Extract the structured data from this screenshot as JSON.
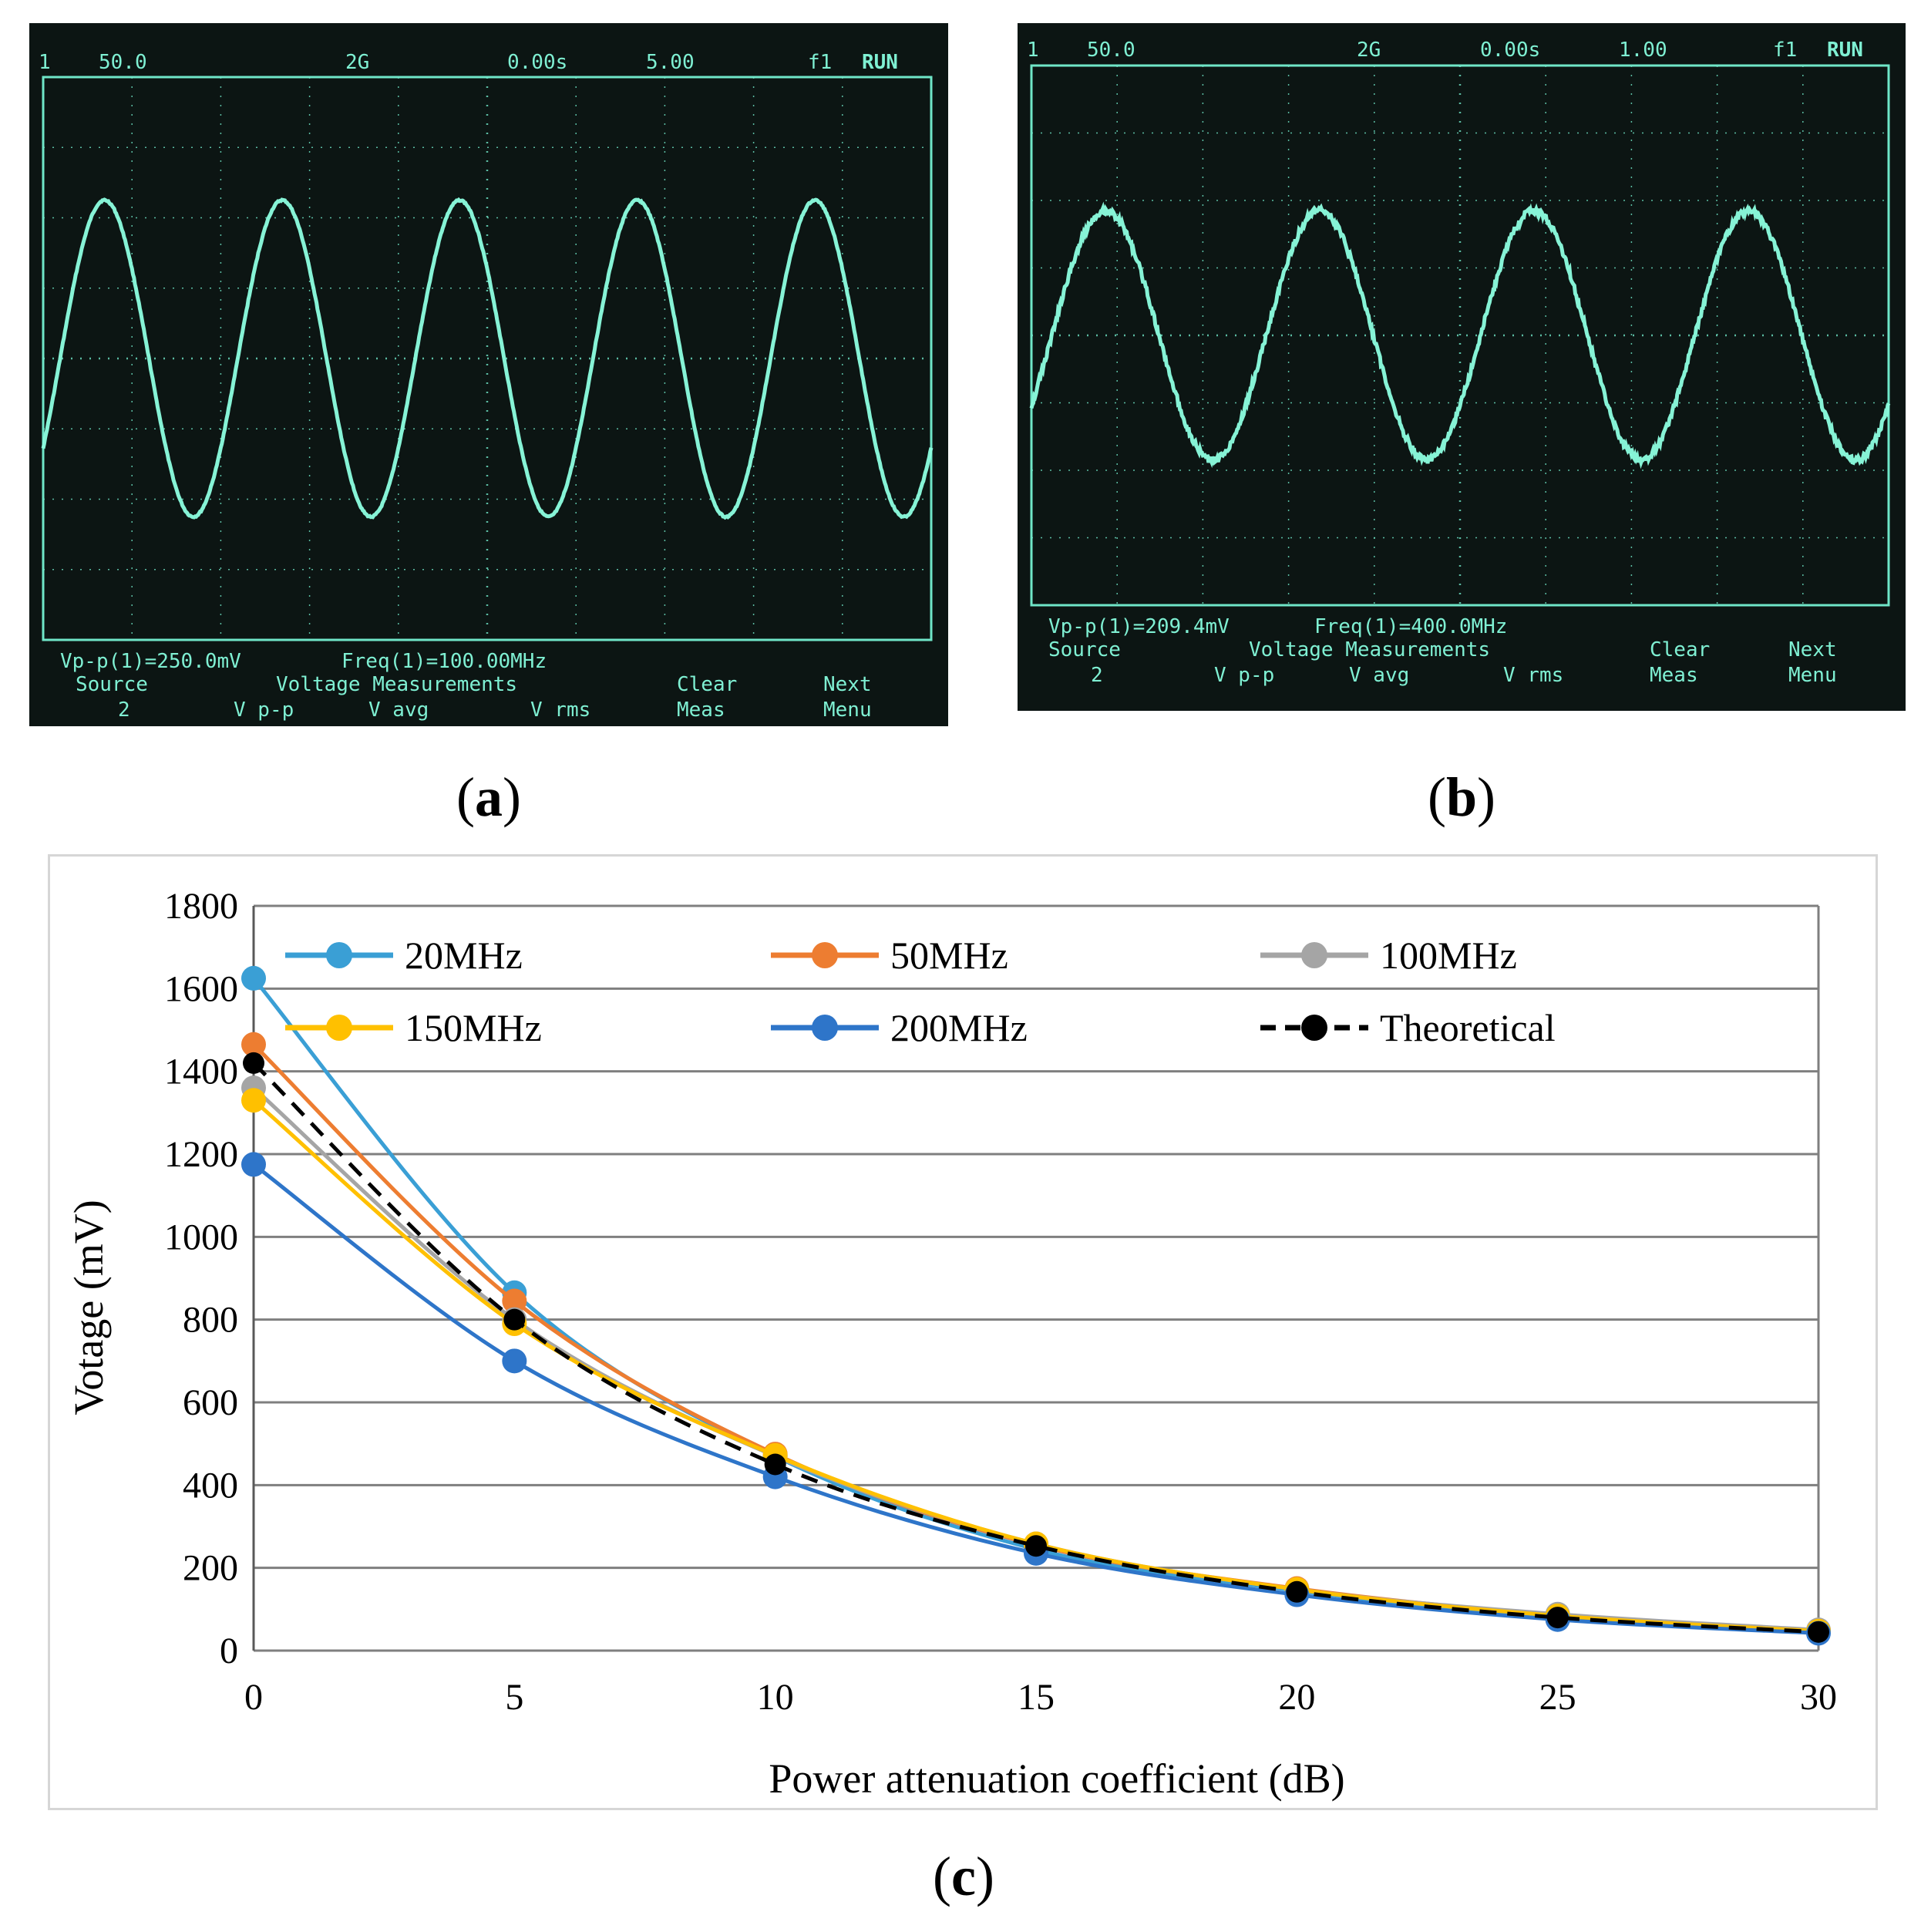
{
  "panels": {
    "a": {
      "caption_letter": "a",
      "header": {
        "channel": "1",
        "volts_div": "50.0",
        "sample_rate": "2G",
        "time_offset": "0.00s",
        "time_div": "5.00",
        "trigger": "f1",
        "status": "RUN"
      },
      "measurements": {
        "vpp": "Vp-p(1)=250.0mV",
        "freq": "Freq(1)=100.00MHz"
      },
      "softkeys": {
        "source": "Source",
        "source_val": "2",
        "voltage_title": "Voltage Measurements",
        "vpp": "V p-p",
        "vavg": "V avg",
        "vrms": "V rms",
        "clear": "Clear",
        "meas": "Meas",
        "next": "Next",
        "menu": "Menu"
      },
      "waveform": {
        "cycles": 5,
        "amplitude_div": 2.25,
        "noise": "low"
      }
    },
    "b": {
      "caption_letter": "b",
      "header": {
        "channel": "1",
        "volts_div": "50.0",
        "sample_rate": "2G",
        "time_offset": "0.00s",
        "time_div": "1.00",
        "trigger": "f1",
        "status": "RUN"
      },
      "measurements": {
        "vpp": "Vp-p(1)=209.4mV",
        "freq": "Freq(1)=400.0MHz"
      },
      "softkeys": {
        "source": "Source",
        "source_val": "2",
        "voltage_title": "Voltage Measurements",
        "vpp": "V p-p",
        "vavg": "V avg",
        "vrms": "V rms",
        "clear": "Clear",
        "meas": "Meas",
        "next": "Next",
        "menu": "Menu"
      },
      "waveform": {
        "cycles": 4,
        "amplitude_div": 1.85,
        "noise": "high"
      }
    }
  },
  "caption_c": "c",
  "chart_data": {
    "type": "line",
    "title": "",
    "xlabel": "Power attenuation coefficient  (dB)",
    "ylabel": "Votage (mV)",
    "x": [
      0,
      5,
      10,
      15,
      20,
      25,
      30
    ],
    "xlim": [
      0,
      30
    ],
    "ylim": [
      0,
      1800
    ],
    "xticks": [
      0,
      5,
      10,
      15,
      20,
      25,
      30
    ],
    "yticks": [
      0,
      200,
      400,
      600,
      800,
      1000,
      1200,
      1400,
      1600,
      1800
    ],
    "grid": true,
    "legend_position": "top",
    "series": [
      {
        "name": "20MHz",
        "color": "#3a9fd5",
        "style": "solid",
        "values": [
          1625,
          865,
          470,
          245,
          145,
          80,
          45
        ]
      },
      {
        "name": "50MHz",
        "color": "#ed7d31",
        "style": "solid",
        "values": [
          1465,
          845,
          475,
          255,
          150,
          85,
          48
        ]
      },
      {
        "name": "100MHz",
        "color": "#a5a5a5",
        "style": "solid",
        "values": [
          1360,
          800,
          470,
          258,
          148,
          88,
          50
        ]
      },
      {
        "name": "150MHz",
        "color": "#ffc000",
        "style": "solid",
        "values": [
          1330,
          790,
          472,
          258,
          148,
          84,
          47
        ]
      },
      {
        "name": "200MHz",
        "color": "#2e75c9",
        "style": "solid",
        "values": [
          1175,
          700,
          420,
          235,
          135,
          75,
          42
        ]
      },
      {
        "name": "Theoretical",
        "color": "#000000",
        "style": "dashed",
        "values": [
          1420,
          800,
          450,
          253,
          142,
          80,
          45
        ]
      }
    ]
  }
}
